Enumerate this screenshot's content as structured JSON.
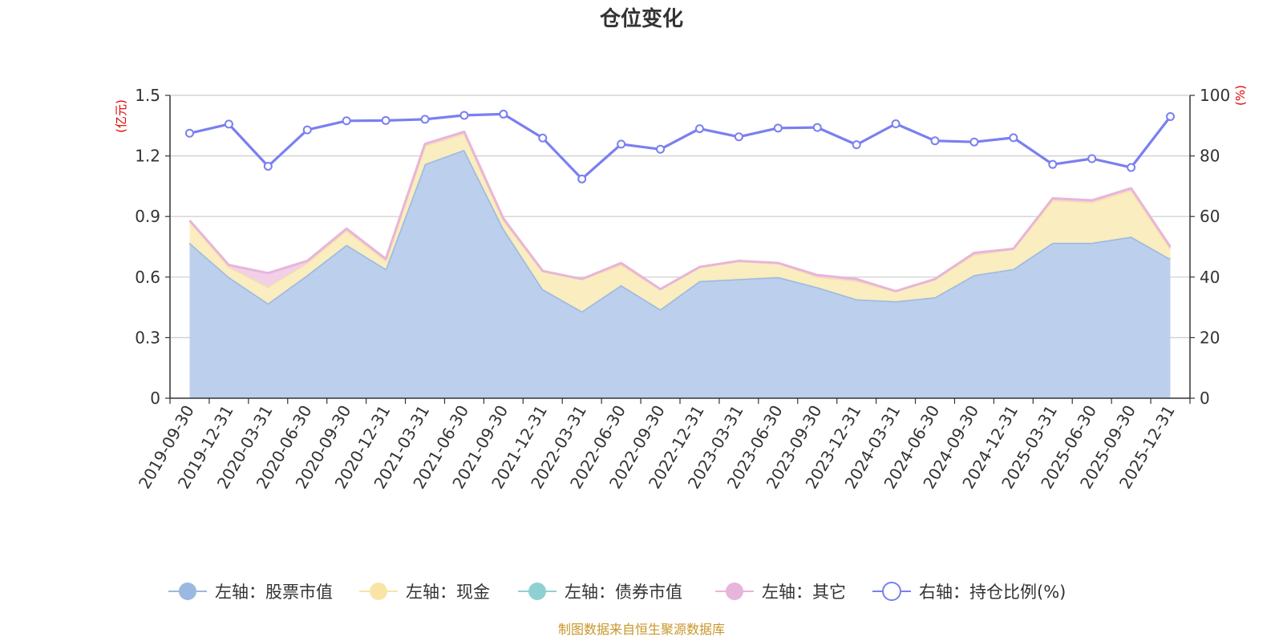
{
  "chart_data": {
    "type": "area",
    "title": "仓位变化",
    "left_unit": "(亿元)",
    "right_unit": "(%)",
    "left_ticks": [
      "0",
      "0.3",
      "0.6",
      "0.9",
      "1.2",
      "1.5"
    ],
    "right_ticks": [
      "0",
      "20",
      "40",
      "60",
      "80",
      "100"
    ],
    "left_ylim": [
      0,
      1.5
    ],
    "right_ylim": [
      0,
      100
    ],
    "categories": [
      "2019-09-30",
      "2019-12-31",
      "2020-03-31",
      "2020-06-30",
      "2020-09-30",
      "2020-12-31",
      "2021-03-31",
      "2021-06-30",
      "2021-09-30",
      "2021-12-31",
      "2022-03-31",
      "2022-06-30",
      "2022-09-30",
      "2022-12-31",
      "2023-03-31",
      "2023-06-30",
      "2023-09-30",
      "2023-12-31",
      "2024-03-31",
      "2024-06-30",
      "2024-09-30",
      "2024-12-31",
      "2025-03-31",
      "2025-06-30",
      "2025-09-30",
      "2025-12-31"
    ],
    "series": [
      {
        "name": "左轴：股票市值",
        "axis": "left",
        "color": "#9bb8e0",
        "fill": "#b8cceb",
        "values": [
          0.77,
          0.6,
          0.47,
          0.61,
          0.76,
          0.64,
          1.16,
          1.23,
          0.84,
          0.54,
          0.43,
          0.56,
          0.44,
          0.58,
          0.59,
          0.6,
          0.55,
          0.49,
          0.48,
          0.5,
          0.61,
          0.64,
          0.77,
          0.77,
          0.8,
          0.69
        ]
      },
      {
        "name": "左轴：现金",
        "axis": "left",
        "color": "#f8e5a6",
        "fill": "#faedbe",
        "values": [
          0.11,
          0.05,
          0.08,
          0.06,
          0.07,
          0.04,
          0.09,
          0.08,
          0.04,
          0.09,
          0.16,
          0.1,
          0.1,
          0.07,
          0.09,
          0.07,
          0.05,
          0.09,
          0.05,
          0.09,
          0.1,
          0.1,
          0.21,
          0.2,
          0.23,
          0.05
        ]
      },
      {
        "name": "左轴：债券市值",
        "axis": "left",
        "color": "#8fd1d2",
        "fill": "#b7e3e4",
        "values": [
          0,
          0,
          0,
          0,
          0,
          0,
          0,
          0,
          0,
          0,
          0,
          0,
          0,
          0,
          0,
          0,
          0,
          0,
          0,
          0,
          0,
          0,
          0,
          0,
          0,
          0
        ]
      },
      {
        "name": "左轴：其它",
        "axis": "left",
        "color": "#e8b5da",
        "fill": "#f1cde7",
        "values": [
          0.0,
          0.01,
          0.07,
          0.01,
          0.01,
          0.01,
          0.01,
          0.01,
          0.01,
          0.0,
          0.0,
          0.01,
          0.0,
          0.0,
          0.0,
          0.0,
          0.01,
          0.01,
          0.0,
          0.0,
          0.01,
          0.0,
          0.01,
          0.01,
          0.01,
          0.01
        ]
      },
      {
        "name": "右轴：持仓比例(%)",
        "axis": "right",
        "color": "#7a7ff0",
        "values": [
          87.5,
          90.5,
          76.6,
          88.6,
          91.6,
          91.7,
          92.1,
          93.4,
          93.8,
          85.9,
          72.4,
          83.9,
          82.2,
          89.0,
          86.3,
          89.2,
          89.4,
          83.7,
          90.6,
          85.0,
          84.6,
          86.0,
          77.2,
          79.1,
          76.2,
          93.0
        ]
      }
    ],
    "source_note": "制图数据来自恒生聚源数据库"
  }
}
